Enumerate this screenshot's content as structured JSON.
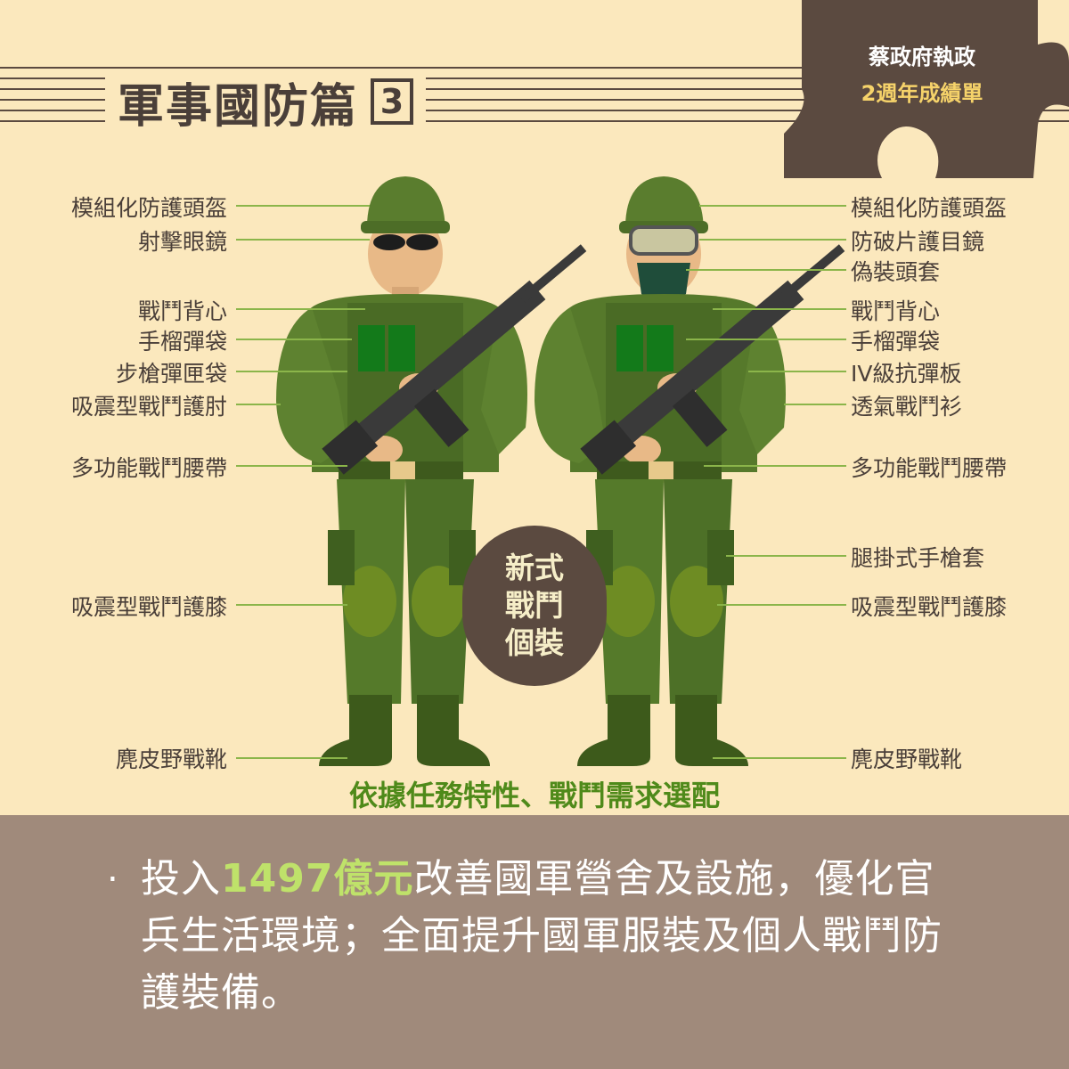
{
  "header": {
    "title": "軍事國防篇",
    "number": "3"
  },
  "badge_top": {
    "line1": "蔡政府執政",
    "line2": "2週年成績單"
  },
  "left_labels": [
    "模組化防護頭盔",
    "射擊眼鏡",
    "戰鬥背心",
    "手榴彈袋",
    "步槍彈匣袋",
    "吸震型戰鬥護肘",
    "多功能戰鬥腰帶",
    "吸震型戰鬥護膝",
    "麂皮野戰靴"
  ],
  "right_labels": [
    "模組化防護頭盔",
    "防破片護目鏡",
    "偽裝頭套",
    "戰鬥背心",
    "手榴彈袋",
    "IV級抗彈板",
    "透氣戰鬥衫",
    "多功能戰鬥腰帶",
    "腿掛式手槍套",
    "吸震型戰鬥護膝",
    "麂皮野戰靴"
  ],
  "center_badge": {
    "line1": "新式",
    "line2": "戰鬥",
    "line3": "個裝"
  },
  "caption": "依據任務特性、戰鬥需求選配",
  "summary": {
    "bullet": "‧",
    "before": "投入",
    "highlight": "1497億元",
    "after": "改善國軍營舍及設施，優化官兵生活環境；全面提升國軍服裝及個人戰鬥防護裝備。"
  },
  "colors": {
    "background": "#fbe8bd",
    "bottom_panel": "#a08a7b",
    "puzzle": "#5b4a40",
    "accent_green": "#4f8a1a",
    "highlight": "#bfe26a",
    "leader_line": "#8bb54a"
  }
}
